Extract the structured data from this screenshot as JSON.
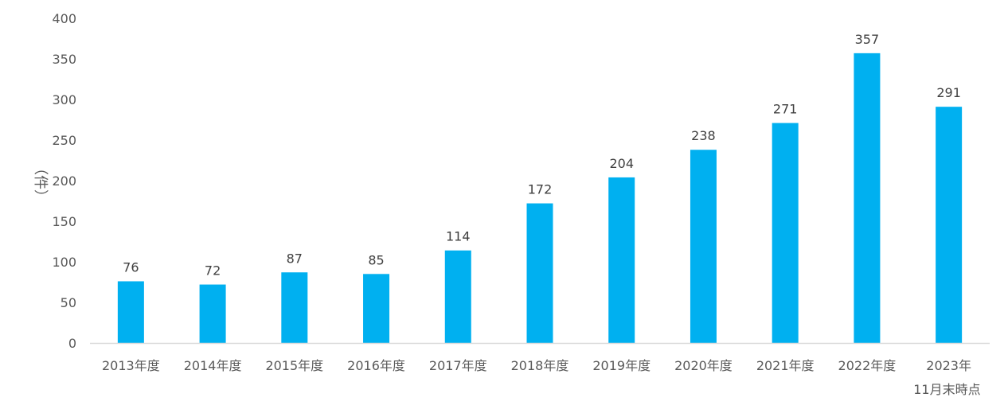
{
  "chart_data": {
    "type": "bar",
    "categories": [
      [
        "2013年度"
      ],
      [
        "2014年度"
      ],
      [
        "2015年度"
      ],
      [
        "2016年度"
      ],
      [
        "2017年度"
      ],
      [
        "2018年度"
      ],
      [
        "2019年度"
      ],
      [
        "2020年度"
      ],
      [
        "2021年度"
      ],
      [
        "2022年度"
      ],
      [
        "2023年",
        "11月末時点"
      ]
    ],
    "values": [
      76,
      72,
      87,
      85,
      114,
      172,
      204,
      238,
      271,
      357,
      291
    ],
    "ylabel": "（件）",
    "ylim": [
      0,
      400
    ],
    "yticks": [
      0,
      50,
      100,
      150,
      200,
      250,
      300,
      350,
      400
    ],
    "data_labels": true,
    "grid": false,
    "bar_color": "#00B0F0",
    "axis_color": "#D9D9D9",
    "text_color": "#595959"
  }
}
